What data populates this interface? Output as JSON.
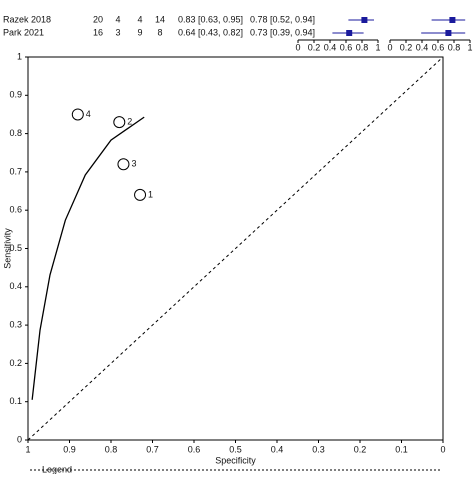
{
  "table": {
    "rows": [
      {
        "study": "Razek 2018",
        "tp": 20,
        "fp": 4,
        "fn": 4,
        "tn": 14,
        "sensitivity": {
          "value": 0.83,
          "ci": [
            0.63,
            0.95
          ],
          "label": "0.83 [0.63, 0.95]"
        },
        "specificity": {
          "value": 0.78,
          "ci": [
            0.52,
            0.94
          ],
          "label": "0.78 [0.52, 0.94]"
        }
      },
      {
        "study": "Park 2021",
        "tp": 16,
        "fp": 3,
        "fn": 9,
        "tn": 8,
        "sensitivity": {
          "value": 0.64,
          "ci": [
            0.43,
            0.82
          ],
          "label": "0.64 [0.43, 0.82]"
        },
        "specificity": {
          "value": 0.73,
          "ci": [
            0.39,
            0.94
          ],
          "label": "0.73 [0.39, 0.94]"
        }
      }
    ],
    "forest_xlim": [
      0,
      1
    ],
    "forest_ticks": [
      0,
      0.2,
      0.4,
      0.6,
      0.8,
      1
    ],
    "color": "#1a1a9c"
  },
  "chart_data": {
    "type": "scatter",
    "xlabel": "Specificity",
    "ylabel": "Sensitivity",
    "xlim": [
      1,
      0
    ],
    "ylim": [
      0,
      1
    ],
    "xticks": [
      1,
      0.9,
      0.8,
      0.7,
      0.6,
      0.5,
      0.4,
      0.3,
      0.2,
      0.1,
      0
    ],
    "yticks": [
      0,
      0.1,
      0.2,
      0.3,
      0.4,
      0.5,
      0.6,
      0.7,
      0.8,
      0.9,
      1
    ],
    "points": {
      "labels": [
        "1",
        "2",
        "3",
        "4"
      ],
      "x": [
        0.73,
        0.78,
        0.77,
        0.88
      ],
      "y": [
        0.64,
        0.83,
        0.72,
        0.85
      ]
    },
    "curve": {
      "x": [
        0.99,
        0.971,
        0.947,
        0.91,
        0.862,
        0.8,
        0.72
      ],
      "y": [
        0.105,
        0.287,
        0.431,
        0.574,
        0.692,
        0.783,
        0.843
      ]
    },
    "legend_title": "Legend"
  }
}
